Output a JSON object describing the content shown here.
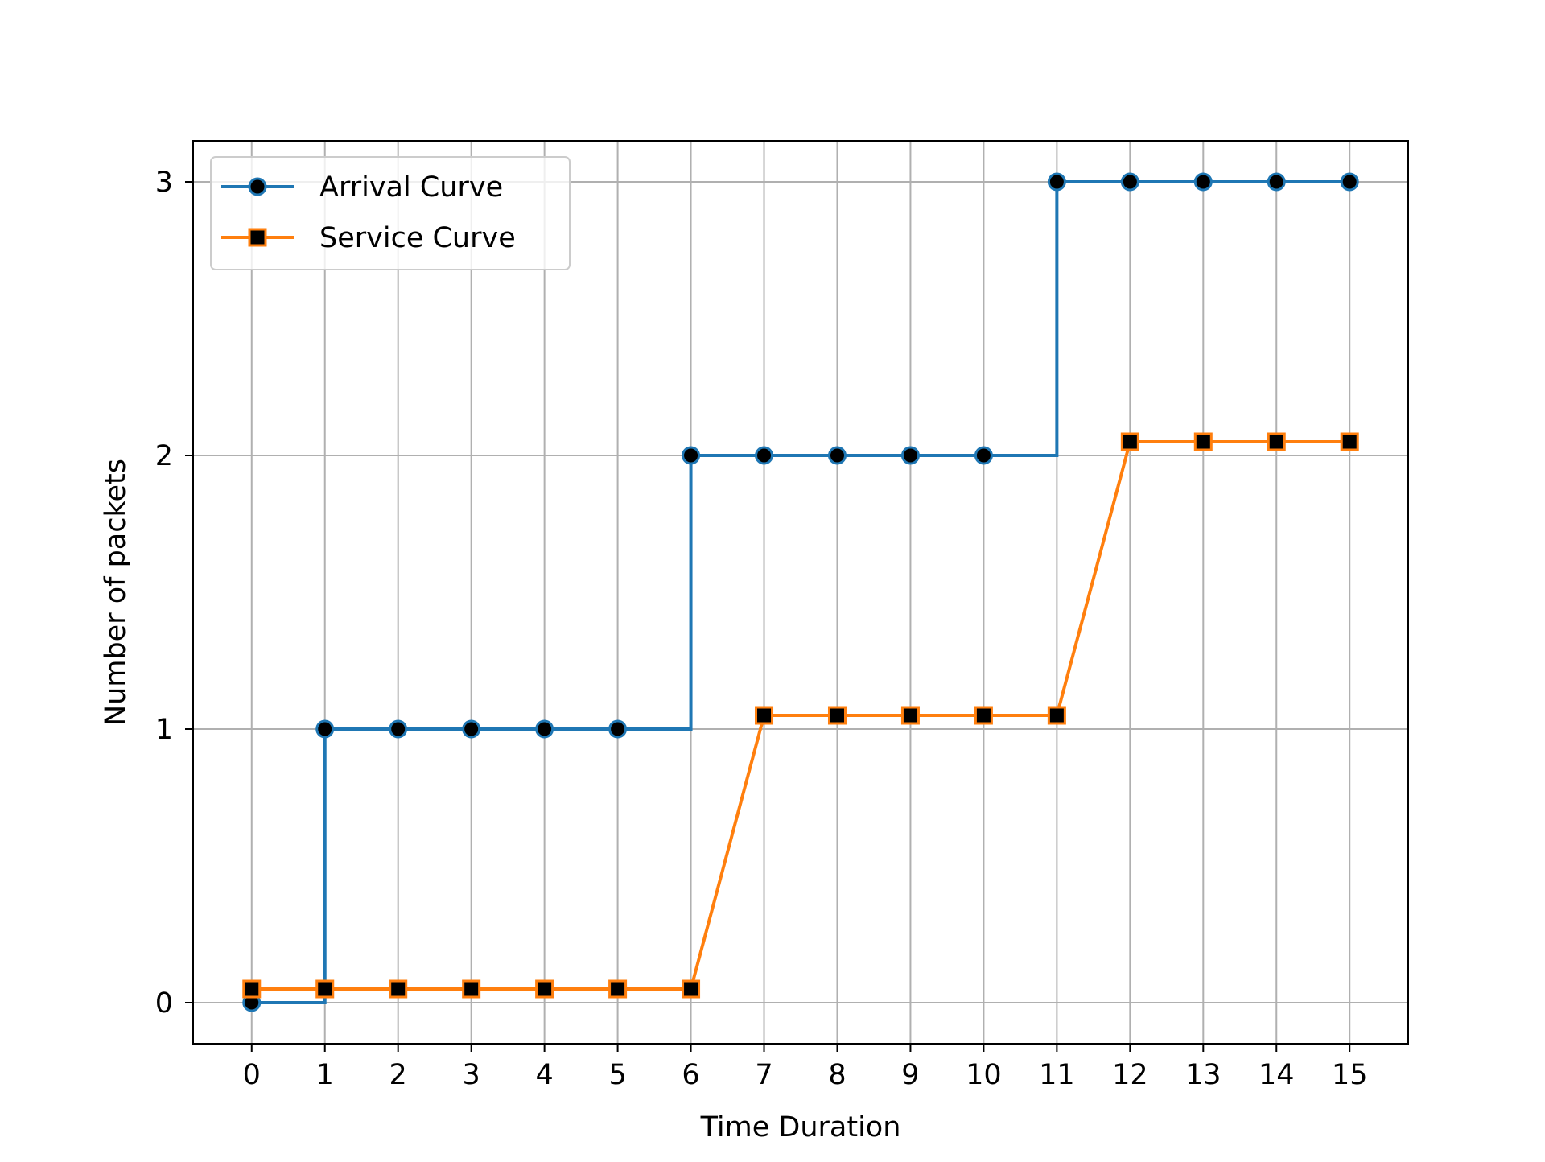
{
  "chart_data": {
    "type": "line",
    "title": "",
    "xlabel": "Time Duration",
    "ylabel": "Number of packets",
    "xlim": [
      -0.8,
      15.8
    ],
    "ylim": [
      -0.15,
      3.15
    ],
    "x_ticks": [
      0,
      1,
      2,
      3,
      4,
      5,
      6,
      7,
      8,
      9,
      10,
      11,
      12,
      13,
      14,
      15
    ],
    "y_ticks": [
      0,
      1,
      2,
      3
    ],
    "grid": true,
    "legend_position": "top-left",
    "series": [
      {
        "name": "Arrival Curve",
        "style": "step-post",
        "marker": "circle",
        "color": "#1f77b4",
        "marker_fill": "#000000",
        "x": [
          0,
          1,
          2,
          3,
          4,
          5,
          6,
          7,
          8,
          9,
          10,
          11,
          12,
          13,
          14,
          15
        ],
        "values": [
          0,
          1,
          1,
          1,
          1,
          1,
          2,
          2,
          2,
          2,
          2,
          3,
          3,
          3,
          3,
          3
        ]
      },
      {
        "name": "Service Curve",
        "style": "line",
        "marker": "square",
        "color": "#ff7f0e",
        "marker_fill": "#000000",
        "x": [
          0,
          1,
          2,
          3,
          4,
          5,
          6,
          7,
          8,
          9,
          10,
          11,
          12,
          13,
          14,
          15
        ],
        "values": [
          0.05,
          0.05,
          0.05,
          0.05,
          0.05,
          0.05,
          0.05,
          1.05,
          1.05,
          1.05,
          1.05,
          1.05,
          2.05,
          2.05,
          2.05,
          2.05
        ]
      }
    ]
  }
}
